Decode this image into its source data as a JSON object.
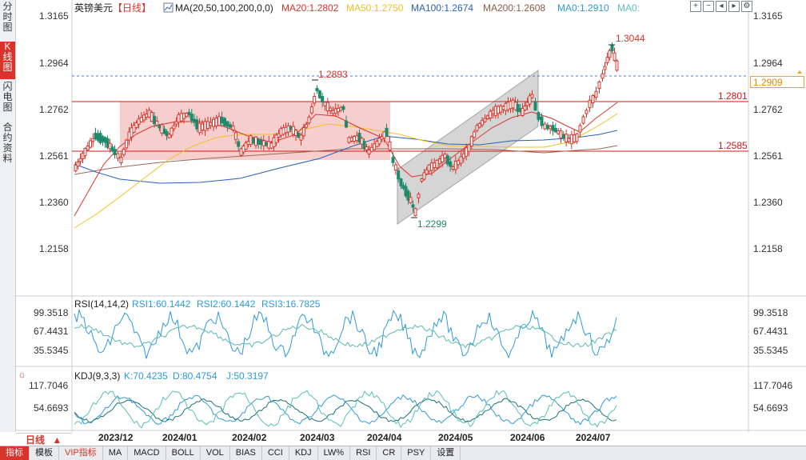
{
  "side_tabs": [
    {
      "label": "分时图",
      "active": false
    },
    {
      "label": "K线图",
      "active": true
    },
    {
      "label": "闪电图",
      "active": false
    },
    {
      "label": "合约资料",
      "active": false
    }
  ],
  "header": {
    "symbol": "英镑美元",
    "period": "【日线】",
    "ma_params": "MA(20,50,100,200,0,0)",
    "ma_items": [
      {
        "label": "MA20:1.2802",
        "color": "#d9342b"
      },
      {
        "label": "MA50:1.2750",
        "color": "#f0c020"
      },
      {
        "label": "MA100:1.2674",
        "color": "#2b5fb8"
      },
      {
        "label": "MA200:1.2608",
        "color": "#8a5a4a"
      },
      {
        "label": "MA0:1.2910",
        "color": "#2f9bd6"
      },
      {
        "label": "MA0:",
        "color": "#5bc0b5"
      }
    ]
  },
  "toolbar_icons": [
    "zoom-in-icon",
    "zoom-out-icon",
    "step-left-icon",
    "step-right-icon",
    "settings-icon"
  ],
  "price_axis": {
    "ticks": [
      "1.3165",
      "1.2964",
      "1.2762",
      "1.2561",
      "1.2360",
      "1.2158"
    ],
    "current_price": "1.2909"
  },
  "annotations": {
    "high": "1.3044",
    "peak_march": "1.2893",
    "low": "1.2299",
    "resistance": "1.2801",
    "support": "1.2585"
  },
  "rsi": {
    "title": "RSI(14,14,2)",
    "items": [
      {
        "label": "RSI1:60.1442",
        "color": "#2f9bd6"
      },
      {
        "label": "RSI2:60.1442",
        "color": "#2f9bd6"
      },
      {
        "label": "RSI3:16.7825",
        "color": "#2f9bd6"
      }
    ],
    "ticks": [
      "99.3518",
      "67.4431",
      "35.5345"
    ]
  },
  "kdj": {
    "title": "KDJ(9,3,3)",
    "items": [
      {
        "label": "K:70.4235",
        "color": "#2f9bd6"
      },
      {
        "label": "D:80.4754",
        "color": "#2f9bd6"
      },
      {
        "label": "J:50.3197",
        "color": "#2f9bd6"
      }
    ],
    "ticks": [
      "117.7046",
      "54.6693"
    ]
  },
  "time_axis": [
    "2023/12",
    "2024/01",
    "2024/02",
    "2024/03",
    "2024/04",
    "2024/05",
    "2024/06",
    "2024/07"
  ],
  "period_selector": {
    "label": "日线",
    "arrow": "▲"
  },
  "bottom_tabs": [
    {
      "label": "指标",
      "active": true
    },
    {
      "label": "模板",
      "active": false
    },
    {
      "label": "VIP指标",
      "vip": true
    },
    {
      "label": "MA"
    },
    {
      "label": "MACD"
    },
    {
      "label": "BOLL"
    },
    {
      "label": "VOL"
    },
    {
      "label": "BIAS"
    },
    {
      "label": "CCI"
    },
    {
      "label": "KDJ"
    },
    {
      "label": "LW%"
    },
    {
      "label": "RSI"
    },
    {
      "label": "CR"
    },
    {
      "label": "PSY"
    },
    {
      "label": "设置"
    }
  ],
  "colors": {
    "up": "#d9342b",
    "down": "#1d8a6b",
    "box_fill": "#f6c6c6",
    "channel_fill": "#c8c8c8",
    "line_red": "#d01818",
    "dash_blue": "#4a78c8"
  }
}
